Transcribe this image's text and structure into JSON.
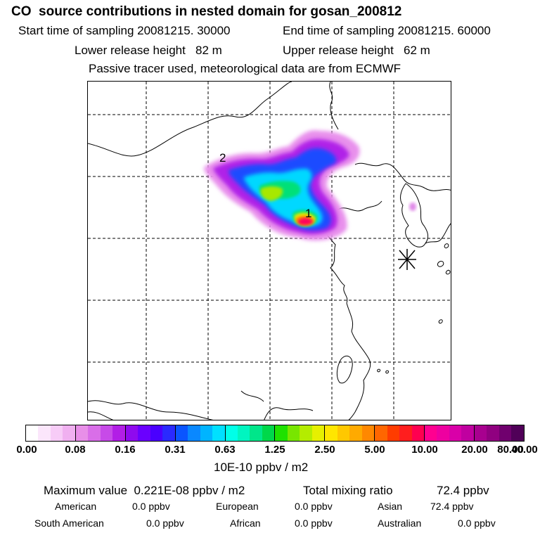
{
  "header": {
    "title": "CO  source contributions in nested domain for gosan_200812",
    "start_label": "Start time of sampling 20081215. 30000",
    "end_label": "End time of sampling 20081215. 60000",
    "lower_label": "Lower release height   82 m",
    "upper_label": "Upper release height   62 m",
    "tracer_label": "Passive tracer used, meteorological data are from ECMWF"
  },
  "map": {
    "labels": [
      "1",
      "2"
    ],
    "receptor_symbol": "asterisk-marker",
    "grid_style": "dashed"
  },
  "colorbar": {
    "colors": [
      "#ffffff",
      "#fbe6fb",
      "#f7ccf7",
      "#f0b0f0",
      "#e88fe8",
      "#d96ee8",
      "#c74ae8",
      "#b21ee6",
      "#8f0aee",
      "#6a00ff",
      "#4a00ff",
      "#2a2aff",
      "#0a55ff",
      "#0a88ff",
      "#00b4ff",
      "#00e0ff",
      "#00ffe8",
      "#00f5c0",
      "#00e68a",
      "#00d84a",
      "#1ee100",
      "#78e600",
      "#b4ec00",
      "#e6f000",
      "#ffe600",
      "#ffc800",
      "#ffaa00",
      "#ff8800",
      "#ff6600",
      "#ff3c00",
      "#ff1e1e",
      "#ff0050",
      "#ff0090",
      "#ee00a0",
      "#d900a8",
      "#c000a0",
      "#a8008f",
      "#900080",
      "#70006e",
      "#500058"
    ],
    "ticks": [
      "0.00",
      "0.08",
      "0.16",
      "0.31",
      "0.63",
      "1.25",
      "2.50",
      "5.00",
      "10.00",
      "20.00",
      "40.00",
      "80.00"
    ],
    "unit": "10E-10 ppbv / m2"
  },
  "summary": {
    "max_label": "Maximum value  0.221E-08 ppbv / m2",
    "total_label": "Total mixing ratio",
    "total_value": "72.4 ppbv",
    "american_label": "American",
    "american_value": "0.0 ppbv",
    "european_label": "European",
    "european_value": "0.0 ppbv",
    "asian_label": "Asian",
    "asian_value": "72.4 ppbv",
    "south_american_label": "South American",
    "south_american_value": "0.0 ppbv",
    "african_label": "African",
    "african_value": "0.0 ppbv",
    "australian_label": "Australian",
    "australian_value": "0.0 ppbv"
  }
}
